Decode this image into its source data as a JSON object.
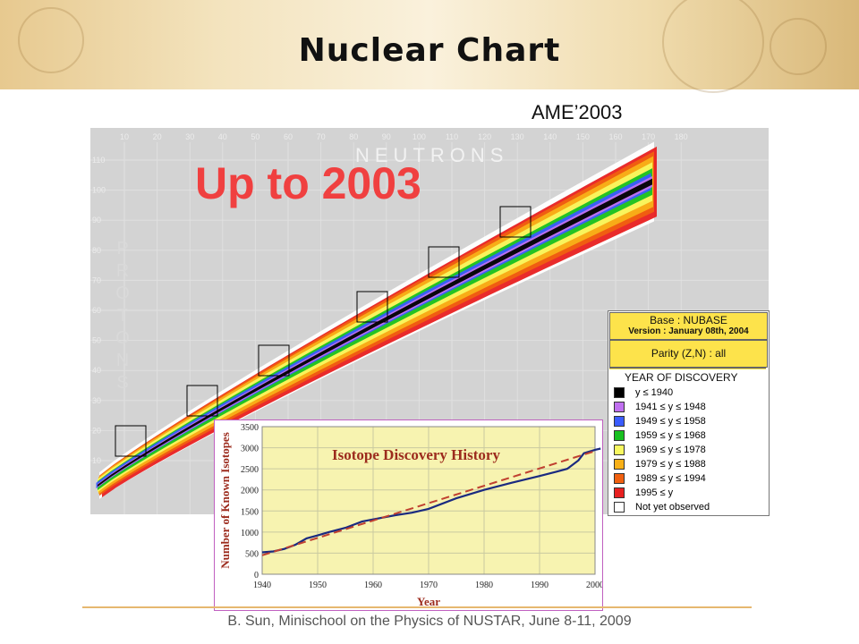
{
  "title": "Nuclear Chart",
  "subtitle": "AME’2003",
  "footer": "B. Sun, Minischool on the Physics of NUSTAR, June 8-11, 2009",
  "nuclear_chart": {
    "headline": "Up to 2003",
    "x_axis_word": "NEUTRONS",
    "y_axis_word": "PROTONS",
    "x_ticks": [
      "10",
      "20",
      "30",
      "40",
      "50",
      "60",
      "70",
      "80",
      "90",
      "100",
      "110",
      "120",
      "130",
      "140",
      "150",
      "160",
      "170",
      "180"
    ],
    "y_ticks": [
      "110",
      "100",
      "90",
      "80",
      "70",
      "60",
      "50",
      "40",
      "30",
      "20",
      "10"
    ]
  },
  "legend": {
    "base": "Base : NUBASE",
    "version": "Version : January 08th, 2004",
    "parity": "Parity (Z,N) : all",
    "heading": "YEAR OF DISCOVERY",
    "items": [
      {
        "label": "y ≤ 1940",
        "color": "#000000"
      },
      {
        "label": "1941 ≤ y ≤ 1948",
        "color": "#c070f0"
      },
      {
        "label": "1949 ≤ y ≤ 1958",
        "color": "#3a5cff"
      },
      {
        "label": "1959 ≤ y ≤ 1968",
        "color": "#18c020"
      },
      {
        "label": "1969 ≤ y ≤ 1978",
        "color": "#f8f860"
      },
      {
        "label": "1979 ≤ y ≤ 1988",
        "color": "#f8b018"
      },
      {
        "label": "1989 ≤ y ≤ 1994",
        "color": "#f06010"
      },
      {
        "label": "1995 ≤ y",
        "color": "#e82020"
      },
      {
        "label": "Not yet observed",
        "color": "#ffffff"
      }
    ]
  },
  "chart_data": {
    "type": "line",
    "title": "Isotope Discovery History",
    "xlabel": "Year",
    "ylabel": "Number of Known Isotopes",
    "xlim": [
      1940,
      2000
    ],
    "ylim": [
      0,
      3500
    ],
    "x_ticks": [
      1940,
      1950,
      1960,
      1970,
      1980,
      1990,
      2000
    ],
    "y_ticks": [
      0,
      500,
      1000,
      1500,
      2000,
      2500,
      3000,
      3500
    ],
    "grid": true,
    "series": [
      {
        "role": "data",
        "color": "#1a2a80",
        "points": [
          [
            1940,
            520
          ],
          [
            1942,
            540
          ],
          [
            1944,
            600
          ],
          [
            1946,
            700
          ],
          [
            1948,
            850
          ],
          [
            1950,
            920
          ],
          [
            1952,
            1000
          ],
          [
            1955,
            1100
          ],
          [
            1958,
            1250
          ],
          [
            1960,
            1300
          ],
          [
            1964,
            1400
          ],
          [
            1967,
            1460
          ],
          [
            1970,
            1550
          ],
          [
            1975,
            1800
          ],
          [
            1980,
            2000
          ],
          [
            1985,
            2170
          ],
          [
            1990,
            2330
          ],
          [
            1993,
            2430
          ],
          [
            1995,
            2500
          ],
          [
            1997,
            2700
          ],
          [
            1998,
            2870
          ],
          [
            2000,
            2950
          ],
          [
            2001,
            2980
          ]
        ]
      },
      {
        "role": "trend",
        "color": "#c04030",
        "points": [
          [
            1940,
            450
          ],
          [
            2000,
            2920
          ]
        ]
      }
    ]
  }
}
